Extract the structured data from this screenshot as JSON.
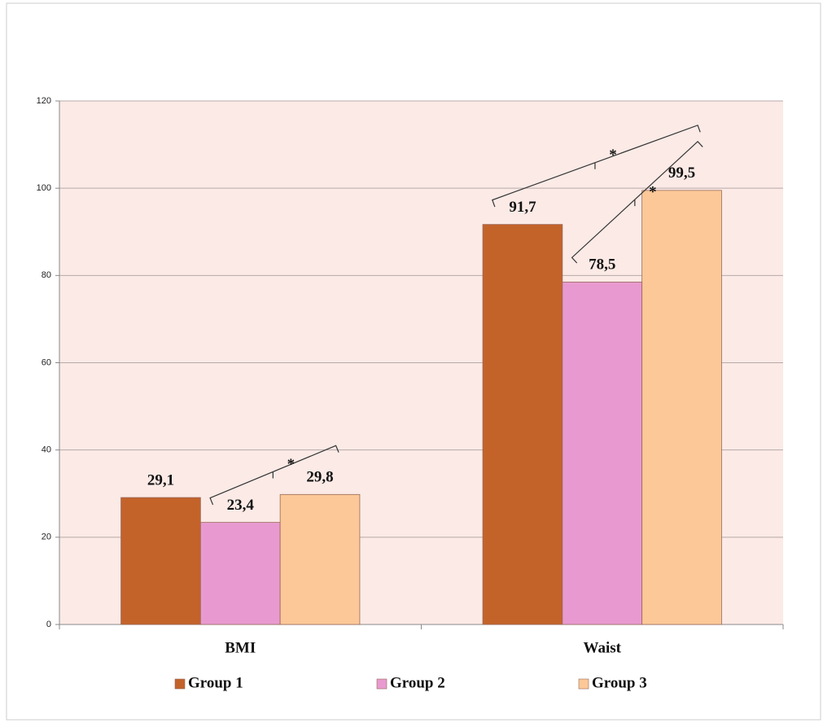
{
  "chart_data": {
    "type": "bar",
    "categories": [
      "BMI",
      "Waist"
    ],
    "series": [
      {
        "name": "Group 1",
        "color": "#c3632a",
        "values": [
          29.1,
          91.7
        ],
        "value_labels": [
          "29,1",
          "91,7"
        ]
      },
      {
        "name": "Group 2",
        "color": "#e89ad0",
        "values": [
          23.4,
          78.5
        ],
        "value_labels": [
          "23,4",
          "78,5"
        ]
      },
      {
        "name": "Group 3",
        "color": "#fcc898",
        "values": [
          29.8,
          99.5
        ],
        "value_labels": [
          "29,8",
          "99,5"
        ]
      }
    ],
    "ylim": [
      0,
      120
    ],
    "yticks": [
      0,
      20,
      40,
      60,
      80,
      100,
      120
    ],
    "grid": true,
    "legend": "bottom",
    "annotations": [
      {
        "text": "*",
        "category": "BMI",
        "between": [
          "Group 2",
          "Group 3"
        ]
      },
      {
        "text": "*",
        "category": "Waist",
        "between": [
          "Group 1",
          "Group 3"
        ]
      },
      {
        "text": "*",
        "category": "Waist",
        "between": [
          "Group 2",
          "Group 3"
        ]
      }
    ]
  }
}
